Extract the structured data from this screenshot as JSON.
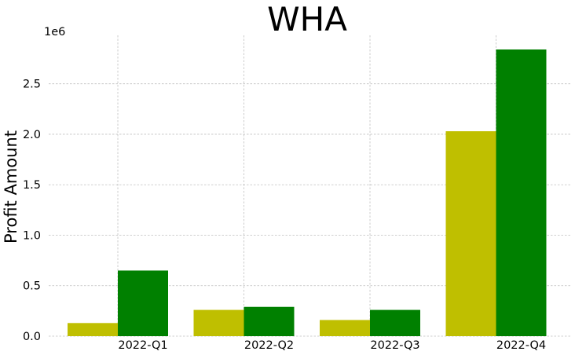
{
  "chart_data": {
    "type": "bar",
    "title": "WHA",
    "xlabel": "",
    "ylabel": "Profit Amount",
    "y_offset_label": "1e6",
    "categories": [
      "2022-Q1",
      "2022-Q2",
      "2022-Q3",
      "2022-Q4"
    ],
    "y_ticks": [
      0.0,
      0.5,
      1.0,
      1.5,
      2.0,
      2.5
    ],
    "y_tick_labels": [
      "0.0",
      "0.5",
      "1.0",
      "1.5",
      "2.0",
      "2.5"
    ],
    "ylim": [
      0,
      2980000
    ],
    "grid": true,
    "legend": "none",
    "series": [
      {
        "color": "#bfbf00",
        "values": [
          130000,
          260000,
          160000,
          2030000
        ]
      },
      {
        "color": "#008000",
        "values": [
          650000,
          290000,
          260000,
          2840000
        ]
      }
    ]
  }
}
